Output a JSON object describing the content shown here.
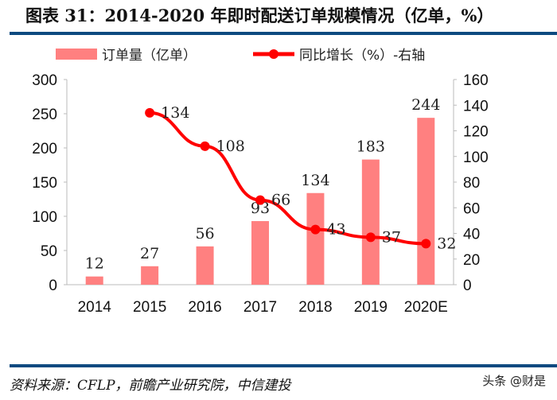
{
  "title": "图表 31：2014-2020 年即时配送订单规模情况（亿单，%）",
  "source": "资料来源：CFLP，前瞻产业研究院，中信建投",
  "watermark": "头条 @财是",
  "chart_data": {
    "type": "bar+line",
    "categories": [
      "2014",
      "2015",
      "2016",
      "2017",
      "2018",
      "2019",
      "2020E"
    ],
    "series": [
      {
        "name": "订单量（亿单）",
        "type": "bar",
        "axis": "left",
        "color": "#ff8080",
        "values": [
          12,
          27,
          56,
          93,
          134,
          183,
          244
        ]
      },
      {
        "name": "同比增长（%）-右轴",
        "type": "line",
        "axis": "right",
        "color": "#ff0000",
        "values": [
          null,
          134,
          108,
          66,
          43,
          37,
          32
        ]
      }
    ],
    "left_axis": {
      "ylim": [
        0,
        300
      ],
      "ticks": [
        "0",
        "50",
        "100",
        "150",
        "200",
        "250",
        "300"
      ]
    },
    "right_axis": {
      "ylim": [
        0,
        160
      ],
      "ticks": [
        "0",
        "20",
        "40",
        "60",
        "80",
        "100",
        "120",
        "140",
        "160"
      ]
    },
    "legend": "top",
    "grid": false
  }
}
